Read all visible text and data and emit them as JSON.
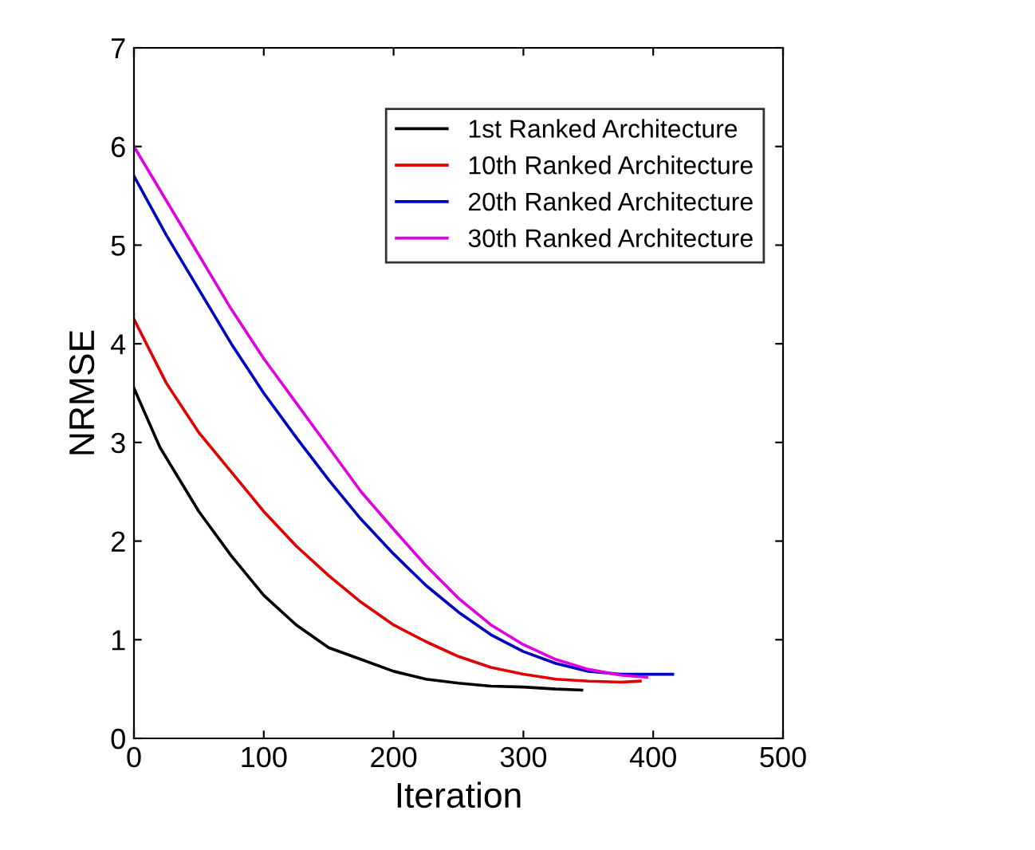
{
  "chart_data": {
    "type": "line",
    "xlabel": "Iteration",
    "ylabel": "NRMSE",
    "xlim": [
      0,
      500
    ],
    "ylim": [
      0,
      7
    ],
    "xticks": [
      0,
      100,
      200,
      300,
      400,
      500
    ],
    "yticks": [
      0,
      1,
      2,
      3,
      4,
      5,
      6,
      7
    ],
    "grid": false,
    "legend": "top right",
    "marker": "none",
    "line_style": "solid",
    "series": [
      {
        "name": "1st Ranked Architecture",
        "color": "#000000",
        "x": [
          0,
          20,
          50,
          75,
          100,
          125,
          150,
          175,
          200,
          225,
          250,
          275,
          300,
          325,
          345
        ],
        "values": [
          3.55,
          2.95,
          2.3,
          1.85,
          1.45,
          1.15,
          0.92,
          0.8,
          0.68,
          0.6,
          0.56,
          0.53,
          0.52,
          0.5,
          0.49
        ]
      },
      {
        "name": "10th Ranked Architecture",
        "color": "#e00000",
        "x": [
          0,
          25,
          50,
          75,
          100,
          125,
          150,
          175,
          200,
          225,
          250,
          275,
          300,
          325,
          350,
          375,
          390
        ],
        "values": [
          4.25,
          3.6,
          3.1,
          2.7,
          2.3,
          1.95,
          1.65,
          1.38,
          1.15,
          0.98,
          0.83,
          0.72,
          0.65,
          0.6,
          0.58,
          0.57,
          0.58
        ]
      },
      {
        "name": "20th Ranked Architecture",
        "color": "#0000c0",
        "x": [
          0,
          25,
          50,
          75,
          100,
          125,
          150,
          175,
          200,
          225,
          250,
          275,
          300,
          325,
          350,
          375,
          400,
          415
        ],
        "values": [
          5.7,
          5.1,
          4.55,
          4.0,
          3.5,
          3.05,
          2.62,
          2.22,
          1.87,
          1.55,
          1.28,
          1.05,
          0.88,
          0.76,
          0.68,
          0.65,
          0.65,
          0.65
        ]
      },
      {
        "name": "30th Ranked Architecture",
        "color": "#e000e0",
        "x": [
          0,
          25,
          50,
          75,
          100,
          125,
          150,
          175,
          200,
          225,
          250,
          275,
          300,
          325,
          350,
          375,
          395
        ],
        "values": [
          6.0,
          5.45,
          4.9,
          4.35,
          3.85,
          3.4,
          2.95,
          2.5,
          2.12,
          1.75,
          1.42,
          1.15,
          0.95,
          0.8,
          0.7,
          0.64,
          0.62
        ]
      }
    ]
  }
}
